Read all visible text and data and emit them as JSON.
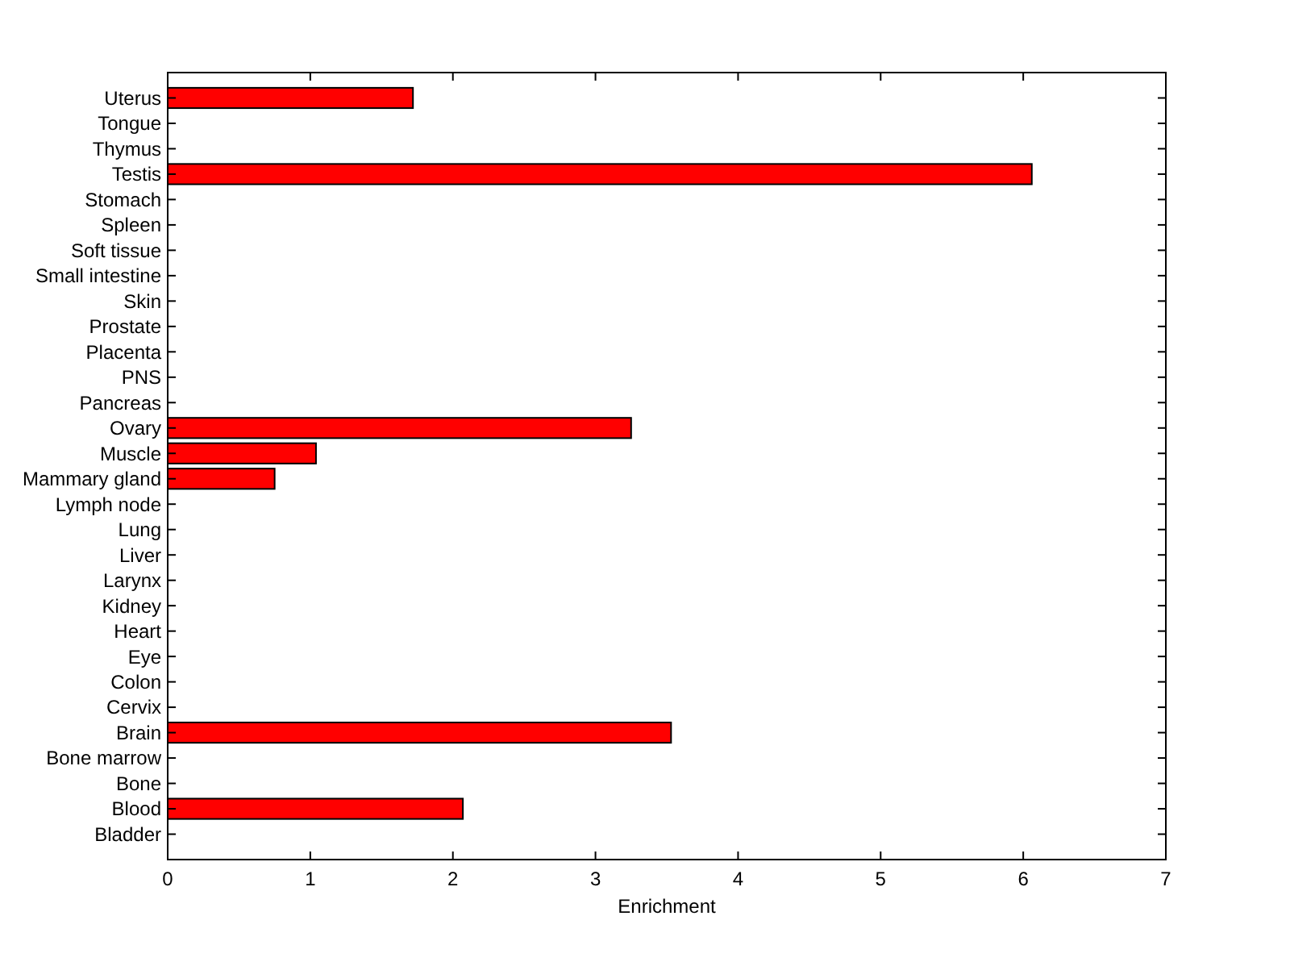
{
  "chart_data": {
    "type": "bar",
    "orientation": "horizontal",
    "xlabel": "Enrichment",
    "categories": [
      "Uterus",
      "Tongue",
      "Thymus",
      "Testis",
      "Stomach",
      "Spleen",
      "Soft tissue",
      "Small intestine",
      "Skin",
      "Prostate",
      "Placenta",
      "PNS",
      "Pancreas",
      "Ovary",
      "Muscle",
      "Mammary gland",
      "Lymph node",
      "Lung",
      "Liver",
      "Larynx",
      "Kidney",
      "Heart",
      "Eye",
      "Colon",
      "Cervix",
      "Brain",
      "Bone marrow",
      "Bone",
      "Blood",
      "Bladder"
    ],
    "values": [
      1.72,
      0,
      0,
      6.06,
      0,
      0,
      0,
      0,
      0,
      0,
      0,
      0,
      0,
      3.25,
      1.04,
      0.75,
      0,
      0,
      0,
      0,
      0,
      0,
      0,
      0,
      0,
      3.53,
      0,
      0,
      2.07,
      0
    ],
    "color": "#ff0000",
    "xlim": [
      0,
      7
    ],
    "xticks": [
      0,
      1,
      2,
      3,
      4,
      5,
      6,
      7
    ]
  }
}
